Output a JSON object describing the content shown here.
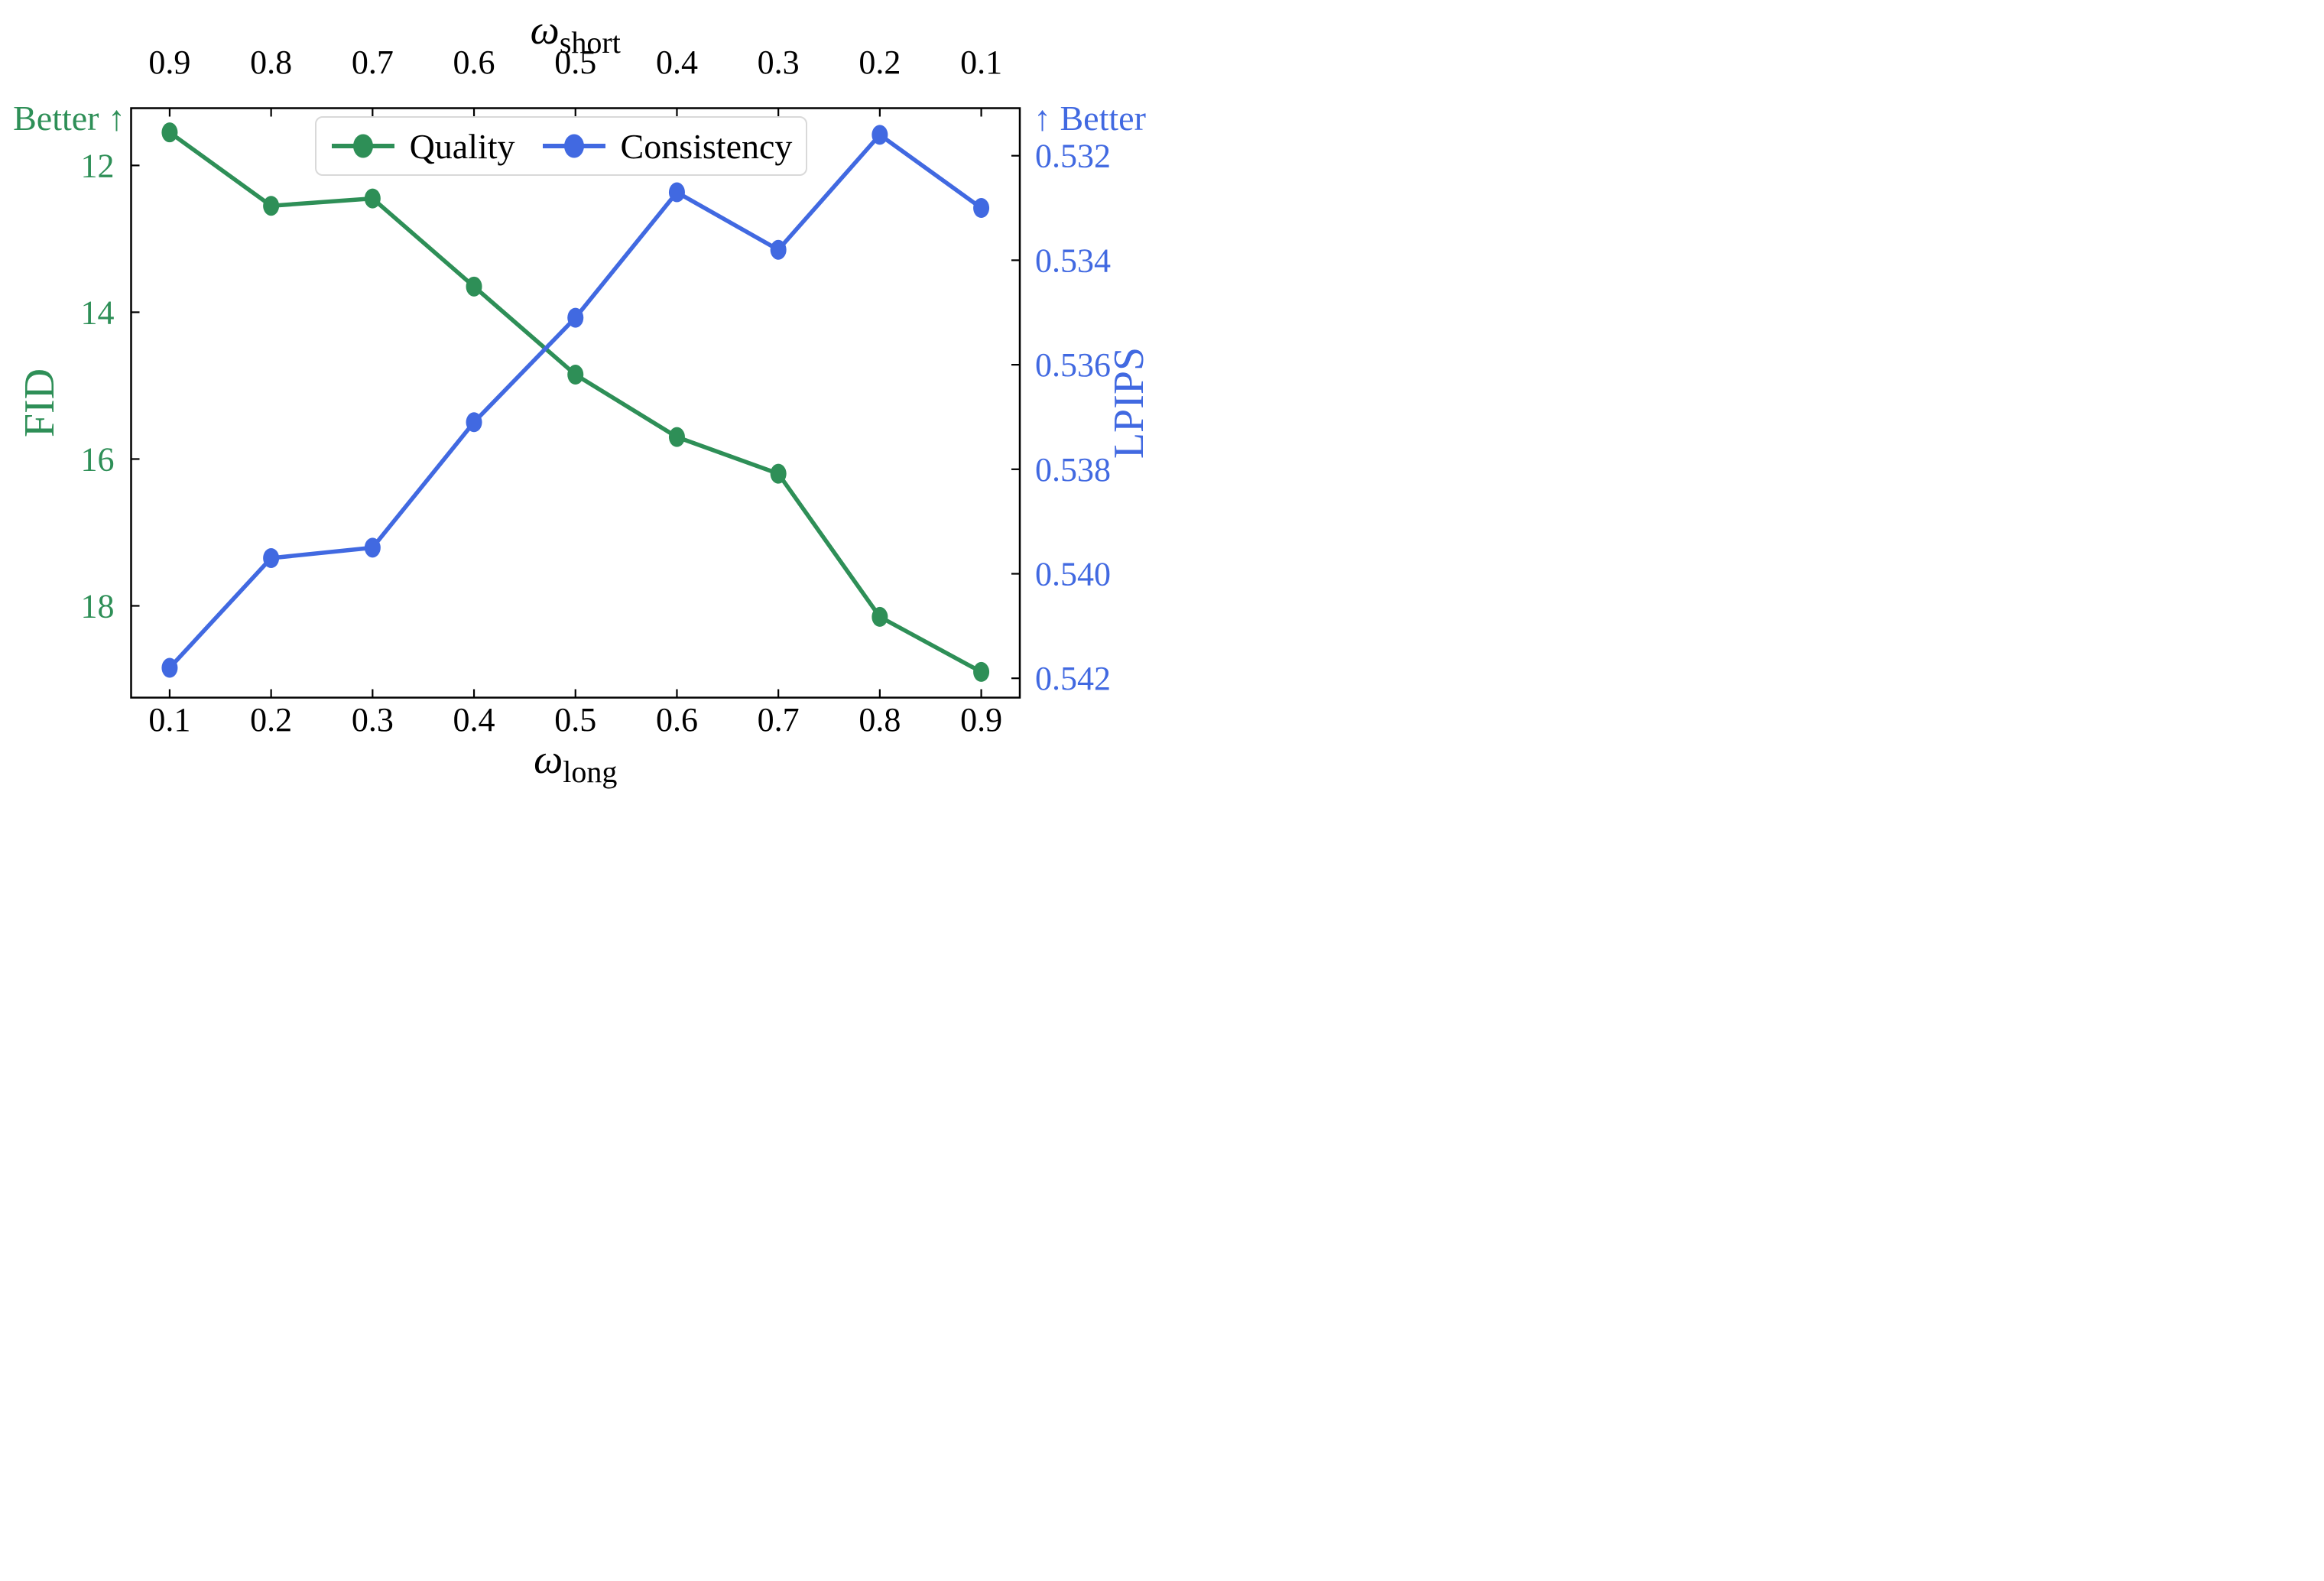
{
  "chart_data": {
    "type": "line",
    "title_top": {
      "symbol": "ω",
      "subscript": "short"
    },
    "xlabel_bottom": {
      "symbol": "ω",
      "subscript": "long"
    },
    "x": [
      0.1,
      0.2,
      0.3,
      0.4,
      0.5,
      0.6,
      0.7,
      0.8,
      0.9
    ],
    "x_tick_labels_bottom": [
      "0.1",
      "0.2",
      "0.3",
      "0.4",
      "0.5",
      "0.6",
      "0.7",
      "0.8",
      "0.9"
    ],
    "x_tick_labels_top": [
      "0.9",
      "0.8",
      "0.7",
      "0.6",
      "0.5",
      "0.4",
      "0.3",
      "0.2",
      "0.1"
    ],
    "series": [
      {
        "name": "Quality",
        "metric": "FID",
        "axis": "left",
        "color": "#2e8f57",
        "values": [
          11.55,
          12.55,
          12.45,
          13.65,
          14.85,
          15.7,
          16.2,
          18.15,
          18.9
        ]
      },
      {
        "name": "Consistency",
        "metric": "LPIPS",
        "axis": "right",
        "color": "#4169e1",
        "values": [
          0.5418,
          0.5397,
          0.5395,
          0.5371,
          0.5351,
          0.5327,
          0.5338,
          0.5316,
          0.533
        ]
      }
    ],
    "left_axis": {
      "label": "FID",
      "better_text": "Better ↑",
      "color": "#2e8f57",
      "ticks": [
        12,
        14,
        16,
        18
      ],
      "range_top_to_bottom": [
        11.22,
        19.25
      ],
      "inverted": true,
      "decimals": 0
    },
    "right_axis": {
      "label": "LPIPS",
      "better_text": "↑ Better",
      "color": "#4169e1",
      "ticks": [
        0.532,
        0.534,
        0.536,
        0.538,
        0.54,
        0.542
      ],
      "range_top_to_bottom": [
        0.53109,
        0.54237
      ],
      "inverted": true,
      "decimals": 3
    },
    "x_axis": {
      "range": [
        0.062,
        0.938
      ]
    },
    "legend": {
      "position": "upper center",
      "items": [
        "Quality",
        "Consistency"
      ]
    },
    "grid": false
  }
}
